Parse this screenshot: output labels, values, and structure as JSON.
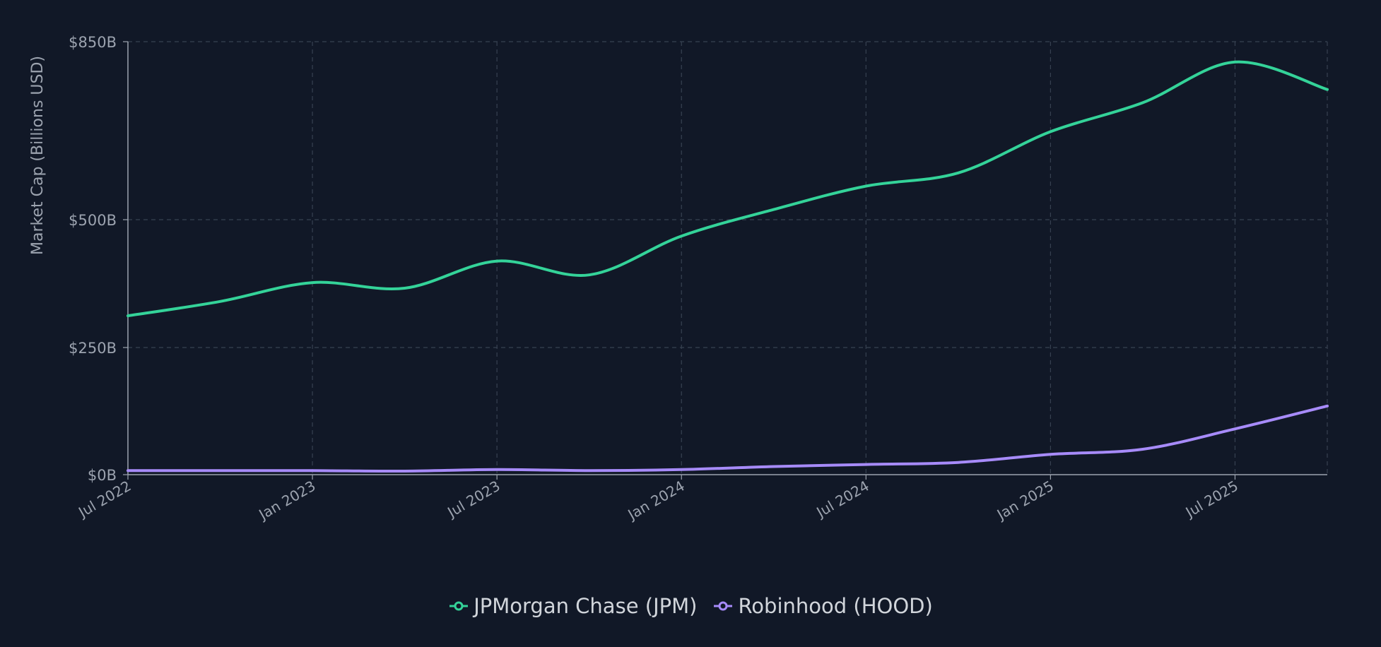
{
  "chart_data": {
    "type": "line",
    "title": "",
    "xlabel": "",
    "ylabel": "Market Cap (Billions USD)",
    "x_range": [
      "2022-07",
      "2025-10"
    ],
    "ylim": [
      0,
      850
    ],
    "y_ticks": [
      {
        "value": 0,
        "label": "$0B"
      },
      {
        "value": 250,
        "label": "$250B"
      },
      {
        "value": 500,
        "label": "$500B"
      },
      {
        "value": 850,
        "label": "$850B"
      }
    ],
    "x_ticks": [
      {
        "date": "2022-07",
        "label": "Jul 2022"
      },
      {
        "date": "2023-01",
        "label": "Jan 2023"
      },
      {
        "date": "2023-07",
        "label": "Jul 2023"
      },
      {
        "date": "2024-01",
        "label": "Jan 2024"
      },
      {
        "date": "2024-07",
        "label": "Jul 2024"
      },
      {
        "date": "2025-01",
        "label": "Jan 2025"
      },
      {
        "date": "2025-07",
        "label": "Jul 2025"
      }
    ],
    "grid": true,
    "legend_position": "bottom-center",
    "series": [
      {
        "name": "JPMorgan Chase (JPM)",
        "color": "#34d399",
        "points": [
          {
            "date": "2022-07",
            "value": 312
          },
          {
            "date": "2022-10",
            "value": 340
          },
          {
            "date": "2023-01",
            "value": 377
          },
          {
            "date": "2023-04",
            "value": 366
          },
          {
            "date": "2023-07",
            "value": 419
          },
          {
            "date": "2023-10",
            "value": 392
          },
          {
            "date": "2024-01",
            "value": 468
          },
          {
            "date": "2024-04",
            "value": 520
          },
          {
            "date": "2024-07",
            "value": 566
          },
          {
            "date": "2024-10",
            "value": 592
          },
          {
            "date": "2025-01",
            "value": 673
          },
          {
            "date": "2025-04",
            "value": 730
          },
          {
            "date": "2025-07",
            "value": 810
          },
          {
            "date": "2025-10",
            "value": 756
          }
        ]
      },
      {
        "name": "Robinhood (HOOD)",
        "color": "#a78bfa",
        "points": [
          {
            "date": "2022-07",
            "value": 8
          },
          {
            "date": "2022-10",
            "value": 8
          },
          {
            "date": "2023-01",
            "value": 8
          },
          {
            "date": "2023-04",
            "value": 7
          },
          {
            "date": "2023-07",
            "value": 10
          },
          {
            "date": "2023-10",
            "value": 8
          },
          {
            "date": "2024-01",
            "value": 10
          },
          {
            "date": "2024-04",
            "value": 16
          },
          {
            "date": "2024-07",
            "value": 20
          },
          {
            "date": "2024-10",
            "value": 24
          },
          {
            "date": "2025-01",
            "value": 40
          },
          {
            "date": "2025-04",
            "value": 50
          },
          {
            "date": "2025-07",
            "value": 90
          },
          {
            "date": "2025-10",
            "value": 135
          }
        ]
      }
    ]
  },
  "theme": {
    "background": "#111827",
    "grid_color": "#374151",
    "axis_color": "#9ca3af",
    "tick_text_color": "#9ca3af",
    "legend_text_color": "#d1d5db"
  }
}
